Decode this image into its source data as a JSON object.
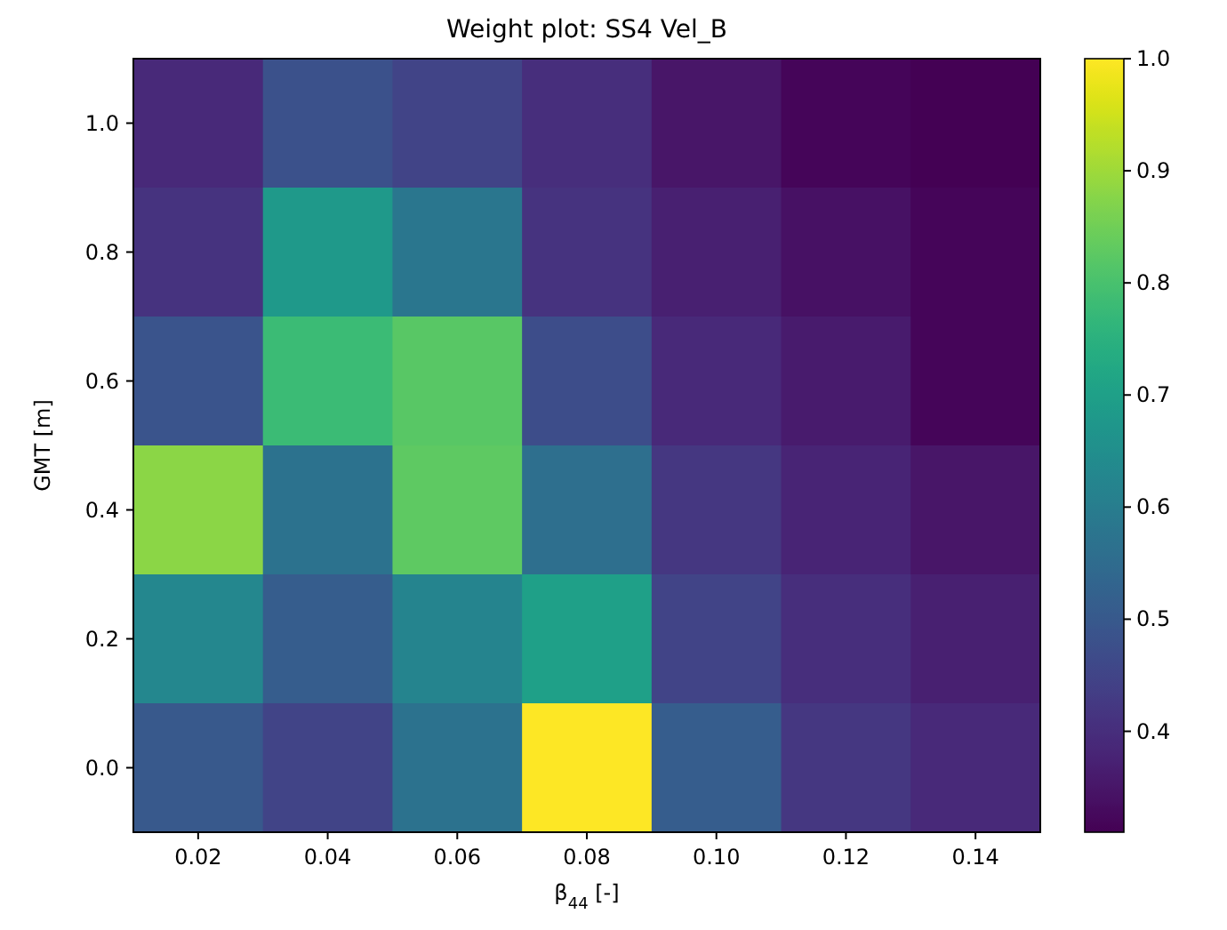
{
  "chart_data": {
    "type": "heatmap",
    "title": "Weight plot: SS4 Vel_B",
    "xlabel": "β$_{44}$ [-]",
    "ylabel": "GMT [m]",
    "categories": [
      "0.02",
      "0.04",
      "0.06",
      "0.08",
      "0.10",
      "0.12",
      "0.14"
    ],
    "y_categories": [
      "1.0",
      "0.8",
      "0.6",
      "0.4",
      "0.2",
      "0.0"
    ],
    "cells": [
      [
        0.39,
        0.48,
        0.45,
        0.4,
        0.35,
        0.32,
        0.31
      ],
      [
        0.41,
        0.68,
        0.58,
        0.41,
        0.37,
        0.34,
        0.32
      ],
      [
        0.49,
        0.78,
        0.82,
        0.47,
        0.39,
        0.36,
        0.32
      ],
      [
        0.88,
        0.57,
        0.83,
        0.56,
        0.42,
        0.38,
        0.35
      ],
      [
        0.63,
        0.51,
        0.62,
        0.7,
        0.45,
        0.4,
        0.37
      ],
      [
        0.5,
        0.45,
        0.57,
        1.0,
        0.51,
        0.42,
        0.39
      ]
    ],
    "clim": [
      0.31,
      1.0
    ],
    "cticks": [
      0.4,
      0.5,
      0.6,
      0.7,
      0.8,
      0.9,
      {
        "value": 1,
        "label": "1.0"
      }
    ]
  }
}
